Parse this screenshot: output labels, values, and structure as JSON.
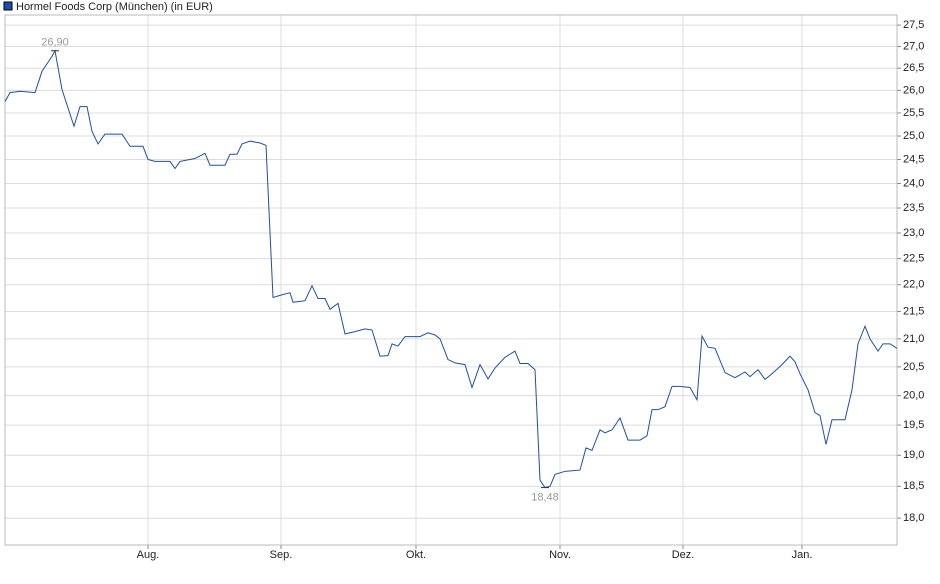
{
  "chart_data": {
    "type": "line",
    "log_scale": true,
    "grid": true,
    "legend": "top-left",
    "series": [
      {
        "name": "Hormel Foods Corp (München) (in EUR)",
        "color": "#1f4fa3",
        "x": [
          5,
          10,
          20,
          35,
          42,
          52,
          55,
          62,
          74,
          80,
          87,
          92,
          98,
          105,
          122,
          130,
          143,
          148,
          155,
          170,
          175,
          180,
          195,
          205,
          210,
          225,
          230,
          237,
          242,
          250,
          260,
          266,
          273,
          280,
          290,
          293,
          305,
          312,
          318,
          325,
          330,
          338,
          345,
          355,
          365,
          372,
          380,
          388,
          392,
          398,
          405,
          420,
          428,
          435,
          440,
          448,
          455,
          465,
          472,
          480,
          488,
          495,
          505,
          515,
          520,
          528,
          535,
          540,
          545,
          550,
          555,
          565,
          580,
          586,
          592,
          600,
          605,
          612,
          620,
          628,
          640,
          647,
          652,
          658,
          665,
          672,
          680,
          690,
          697,
          702,
          708,
          715,
          725,
          735,
          745,
          750,
          758,
          765,
          772,
          782,
          790,
          795,
          800,
          808,
          815,
          820,
          826,
          832,
          845,
          852,
          858,
          865,
          870,
          878,
          883,
          890,
          897
        ],
        "values": [
          25.75,
          25.95,
          25.98,
          25.95,
          26.43,
          26.77,
          26.9,
          26.02,
          25.21,
          25.64,
          25.64,
          25.1,
          24.83,
          25.04,
          25.04,
          24.78,
          24.78,
          24.5,
          24.46,
          24.46,
          24.31,
          24.46,
          24.52,
          24.63,
          24.38,
          24.38,
          24.61,
          24.61,
          24.83,
          24.89,
          24.85,
          24.8,
          21.76,
          21.8,
          21.85,
          21.67,
          21.7,
          21.98,
          21.74,
          21.74,
          21.54,
          21.65,
          21.09,
          21.13,
          21.18,
          21.16,
          20.69,
          20.7,
          20.91,
          20.87,
          21.04,
          21.04,
          21.11,
          21.07,
          21.0,
          20.63,
          20.57,
          20.54,
          20.14,
          20.54,
          20.29,
          20.48,
          20.67,
          20.78,
          20.56,
          20.56,
          20.45,
          18.6,
          18.48,
          18.5,
          18.69,
          18.74,
          18.76,
          19.12,
          19.08,
          19.42,
          19.37,
          19.42,
          19.62,
          19.25,
          19.25,
          19.32,
          19.76,
          19.76,
          19.81,
          20.16,
          20.16,
          20.14,
          19.93,
          21.05,
          20.85,
          20.83,
          20.4,
          20.31,
          20.41,
          20.33,
          20.45,
          20.28,
          20.38,
          20.54,
          20.69,
          20.59,
          20.38,
          20.1,
          19.71,
          19.66,
          19.18,
          19.59,
          19.59,
          20.1,
          20.91,
          21.23,
          21.0,
          20.78,
          20.91,
          20.91,
          20.83
        ]
      }
    ],
    "annotations": [
      {
        "x": 55,
        "value": 26.9,
        "label": "26,90"
      },
      {
        "x": 545,
        "value": 18.48,
        "label": "18,48"
      }
    ],
    "xlim": [
      5,
      897
    ],
    "xticks": [
      {
        "value": 148,
        "label": "Aug."
      },
      {
        "value": 281,
        "label": "Sep."
      },
      {
        "value": 416,
        "label": "Okt."
      },
      {
        "value": 560,
        "label": "Nov."
      },
      {
        "value": 683,
        "label": "Dez."
      },
      {
        "value": 802,
        "label": "Jan."
      }
    ],
    "ylim": [
      17.59,
      27.74
    ],
    "yticks": [
      {
        "value": 18.0,
        "label": "18,0"
      },
      {
        "value": 18.5,
        "label": "18,5"
      },
      {
        "value": 19.0,
        "label": "19,0"
      },
      {
        "value": 19.5,
        "label": "19,5"
      },
      {
        "value": 20.0,
        "label": "20,0"
      },
      {
        "value": 20.5,
        "label": "20,5"
      },
      {
        "value": 21.0,
        "label": "21,0"
      },
      {
        "value": 21.5,
        "label": "21,5"
      },
      {
        "value": 22.0,
        "label": "22,0"
      },
      {
        "value": 22.5,
        "label": "22,5"
      },
      {
        "value": 23.0,
        "label": "23,0"
      },
      {
        "value": 23.5,
        "label": "23,5"
      },
      {
        "value": 24.0,
        "label": "24,0"
      },
      {
        "value": 24.5,
        "label": "24,5"
      },
      {
        "value": 25.0,
        "label": "25,0"
      },
      {
        "value": 25.5,
        "label": "25,5"
      },
      {
        "value": 26.0,
        "label": "26,0"
      },
      {
        "value": 26.5,
        "label": "26,5"
      },
      {
        "value": 27.0,
        "label": "27,0"
      },
      {
        "value": 27.5,
        "label": "27,5"
      }
    ]
  }
}
